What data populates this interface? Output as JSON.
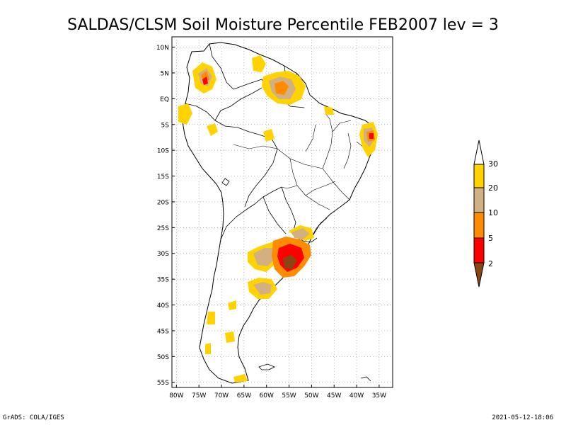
{
  "title": "SALDAS/CLSM Soil Moisture Percentile FEB2007 lev = 3",
  "map": {
    "lat_ticks": [
      "10N",
      "5N",
      "EQ",
      "5S",
      "10S",
      "15S",
      "20S",
      "25S",
      "30S",
      "35S",
      "40S",
      "45S",
      "50S",
      "55S"
    ],
    "lon_ticks": [
      "80W",
      "75W",
      "70W",
      "65W",
      "60W",
      "55W",
      "50W",
      "45W",
      "40W",
      "35W"
    ],
    "lat_values": [
      10,
      5,
      0,
      -5,
      -10,
      -15,
      -20,
      -25,
      -30,
      -35,
      -40,
      -45,
      -50,
      -55
    ],
    "lon_values": [
      -80,
      -75,
      -70,
      -65,
      -60,
      -55,
      -50,
      -45,
      -40,
      -35
    ],
    "extent": {
      "lon_min": -81,
      "lon_max": -32,
      "lat_min": -56,
      "lat_max": 12
    },
    "gridlines": "dotted"
  },
  "legend": {
    "labels": [
      "30",
      "20",
      "10",
      "5",
      "2"
    ],
    "colors": {
      "above_30": "#ffffff",
      "band_20_30": "#ffd200",
      "band_10_20": "#d2b082",
      "band_5_10": "#ff8c00",
      "band_2_5": "#ff0000",
      "below_2": "#8b4513"
    }
  },
  "footer": {
    "credit": "GrADS: COLA/IGES",
    "timestamp": "2021-05-12-18:06"
  }
}
